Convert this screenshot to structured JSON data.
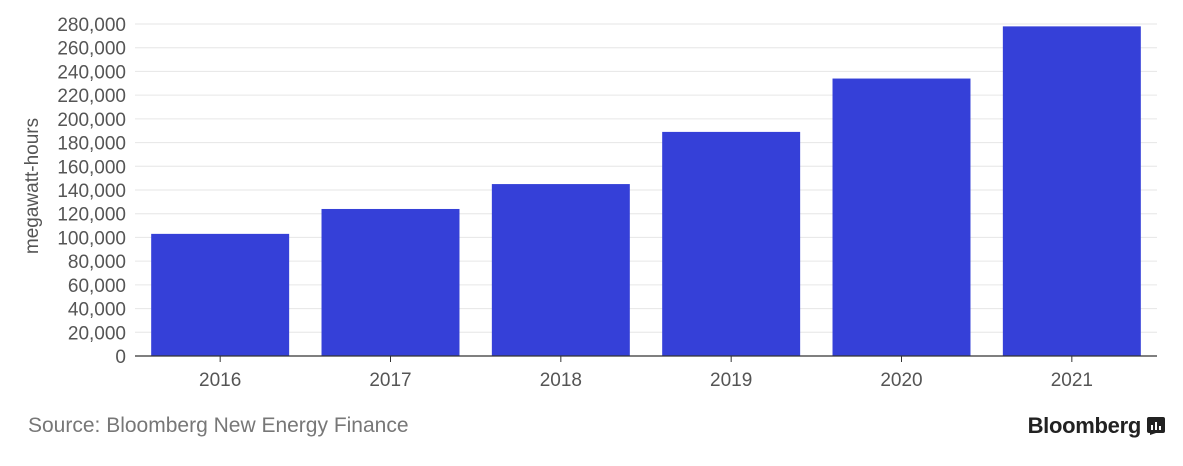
{
  "chart_data": {
    "type": "bar",
    "categories": [
      "2016",
      "2017",
      "2018",
      "2019",
      "2020",
      "2021"
    ],
    "values": [
      103000,
      124000,
      145000,
      189000,
      234000,
      278000
    ],
    "title": "",
    "xlabel": "",
    "ylabel": "megawatt-hours",
    "ylim": [
      0,
      280000
    ],
    "yticks": [
      "0",
      "20,000",
      "40,000",
      "60,000",
      "80,000",
      "100,000",
      "120,000",
      "140,000",
      "160,000",
      "180,000",
      "200,000",
      "220,000",
      "240,000",
      "260,000",
      "280,000"
    ],
    "grid": true,
    "bar_color": "#3540d8"
  },
  "footer": {
    "source": "Source: Bloomberg New Energy Finance",
    "brand": "Bloomberg",
    "brand_icon": "bloomberg-terminal-icon"
  }
}
